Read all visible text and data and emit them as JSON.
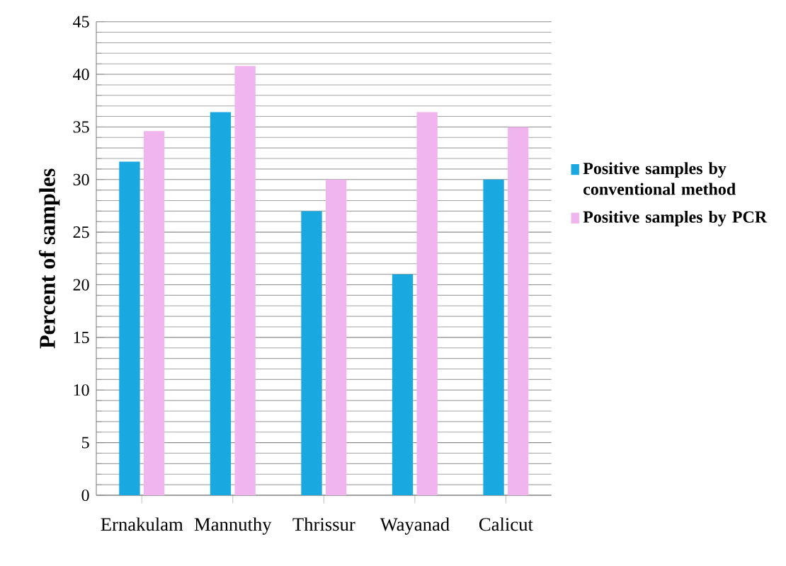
{
  "chart_data": {
    "type": "bar",
    "ylabel": "Percent of samples",
    "categories": [
      "Ernakulam",
      "Mannuthy",
      "Thrissur",
      "Wayanad",
      "Calicut"
    ],
    "series": [
      {
        "name": "Positive samples by conventional method",
        "color": "#1aa8e0",
        "values": [
          31.7,
          36.4,
          27,
          21,
          30
        ]
      },
      {
        "name": "Positive samples by PCR",
        "color": "#f0b4ee",
        "values": [
          34.6,
          40.8,
          30,
          36.4,
          35
        ]
      }
    ],
    "ylim": [
      0,
      45
    ],
    "yticks": [
      0,
      5,
      10,
      15,
      20,
      25,
      30,
      35,
      40,
      45
    ],
    "grid": "y",
    "legend": "right"
  }
}
